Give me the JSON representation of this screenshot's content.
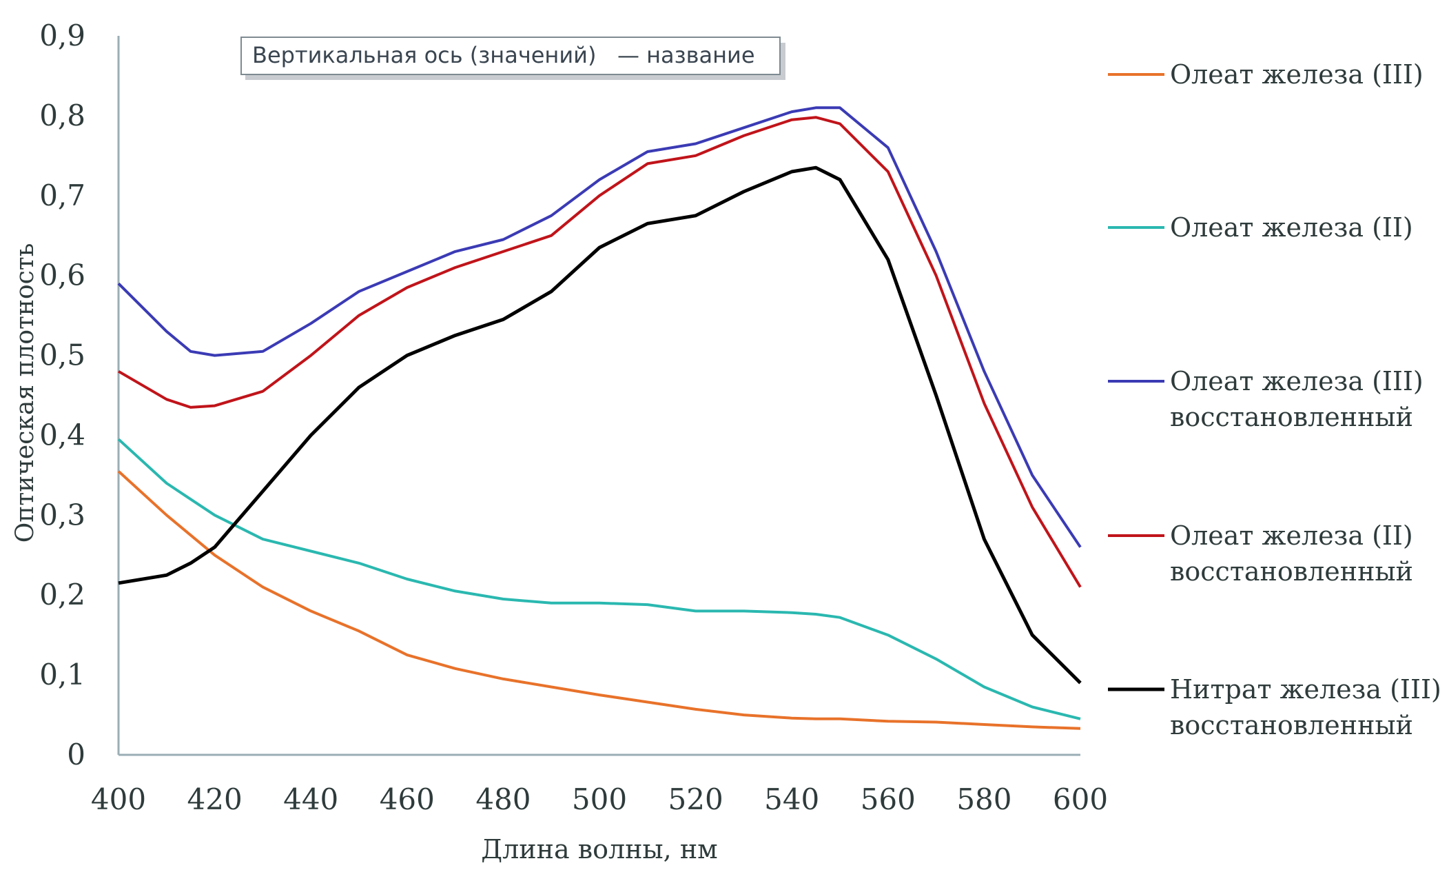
{
  "chart_data": {
    "type": "line",
    "title_placeholder": "Вертикальная ось (значений)   — название",
    "xlabel": "Длина волны, нм",
    "ylabel": "Оптическая плотность",
    "xlim": [
      400,
      600
    ],
    "ylim": [
      0,
      0.9
    ],
    "x_ticks": [
      "400",
      "420",
      "440",
      "460",
      "480",
      "500",
      "520",
      "540",
      "560",
      "580",
      "600"
    ],
    "y_ticks": [
      "0",
      "0,1",
      "0,2",
      "0,3",
      "0,4",
      "0,5",
      "0,6",
      "0,7",
      "0,8",
      "0,9"
    ],
    "grid": false,
    "legend_position": "right",
    "x": [
      400,
      410,
      415,
      420,
      430,
      440,
      450,
      460,
      470,
      480,
      490,
      500,
      510,
      520,
      530,
      540,
      545,
      550,
      560,
      570,
      580,
      590,
      600
    ],
    "series": [
      {
        "name": "Олеат железа (III)",
        "color": "#e8722a",
        "values": [
          0.355,
          0.3,
          0.275,
          0.25,
          0.21,
          0.18,
          0.155,
          0.125,
          0.108,
          0.095,
          0.085,
          0.075,
          0.066,
          0.057,
          0.05,
          0.046,
          0.045,
          0.045,
          0.042,
          0.041,
          0.038,
          0.035,
          0.033
        ]
      },
      {
        "name": "Олеат железа (II)",
        "color": "#2ab8b0",
        "values": [
          0.395,
          0.34,
          0.32,
          0.3,
          0.27,
          0.255,
          0.24,
          0.22,
          0.205,
          0.195,
          0.19,
          0.19,
          0.188,
          0.18,
          0.18,
          0.178,
          0.176,
          0.172,
          0.15,
          0.12,
          0.085,
          0.06,
          0.045
        ]
      },
      {
        "name": "Олеат железа (III) восстановленный",
        "color": "#3b3bb5",
        "values": [
          0.59,
          0.53,
          0.505,
          0.5,
          0.505,
          0.54,
          0.58,
          0.605,
          0.63,
          0.645,
          0.675,
          0.72,
          0.755,
          0.765,
          0.785,
          0.805,
          0.81,
          0.81,
          0.76,
          0.63,
          0.48,
          0.35,
          0.26
        ]
      },
      {
        "name": "Олеат железа (II) восстановленный",
        "color": "#c0141a",
        "values": [
          0.48,
          0.445,
          0.435,
          0.437,
          0.455,
          0.5,
          0.55,
          0.585,
          0.61,
          0.63,
          0.65,
          0.7,
          0.74,
          0.75,
          0.775,
          0.795,
          0.798,
          0.79,
          0.73,
          0.6,
          0.44,
          0.31,
          0.21
        ]
      },
      {
        "name": "Нитрат железа (III) восстановленный",
        "color": "#000000",
        "values": [
          0.215,
          0.225,
          0.24,
          0.26,
          0.33,
          0.4,
          0.46,
          0.5,
          0.525,
          0.545,
          0.58,
          0.635,
          0.665,
          0.675,
          0.705,
          0.73,
          0.735,
          0.72,
          0.62,
          0.45,
          0.27,
          0.15,
          0.09
        ]
      }
    ],
    "legend": [
      {
        "lines": [
          "Олеат железа (III)"
        ]
      },
      {
        "lines": [
          "Олеат железа (II)"
        ]
      },
      {
        "lines": [
          "Олеат железа (III)",
          "восстановленный"
        ]
      },
      {
        "lines": [
          "Олеат железа (II)",
          "восстановленный"
        ]
      },
      {
        "lines": [
          "Нитрат железа (III)",
          "восстановленный"
        ]
      }
    ]
  }
}
